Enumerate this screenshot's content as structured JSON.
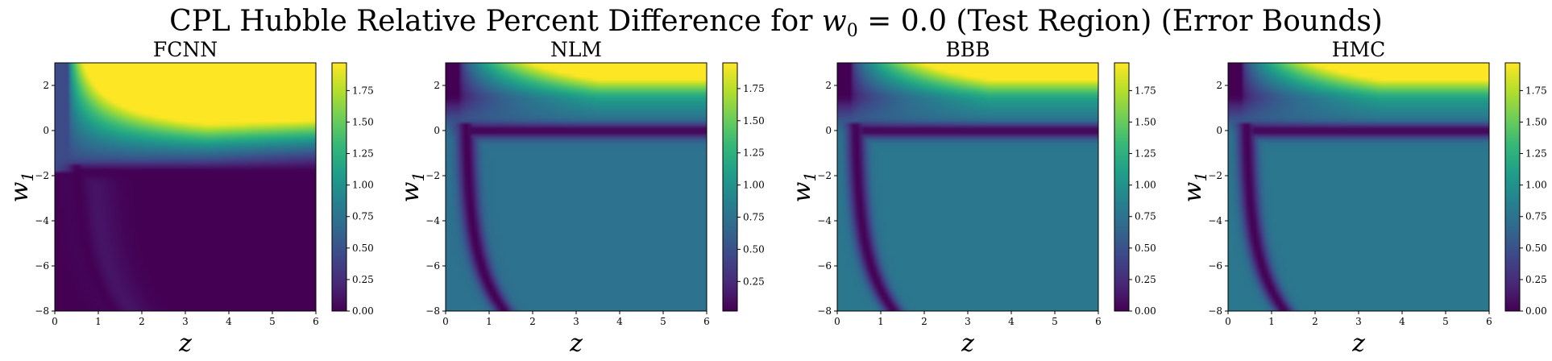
{
  "chart_data": {
    "type": "heatmap",
    "title": "CPL Hubble Relative Percent Difference for w0 = 0.0 (Test Region) (Error Bounds)",
    "title_parts": {
      "prefix": "CPL Hubble Relative Percent Difference for ",
      "var": "w",
      "var_sub": "0",
      "suffix": " = 0.0 (Test Region) (Error Bounds)"
    },
    "xlabel": "z",
    "ylabel": {
      "var": "w",
      "sub": "1"
    },
    "xlim": [
      0,
      6
    ],
    "ylim": [
      -8,
      3
    ],
    "x_ticks": [
      0,
      1,
      2,
      3,
      4,
      5,
      6
    ],
    "y_ticks": [
      -8,
      -6,
      -4,
      -2,
      0,
      2
    ],
    "colormap": "viridis",
    "colormap_stops": [
      "#440154",
      "#482878",
      "#3e4989",
      "#31688e",
      "#26828e",
      "#1f9e89",
      "#35b779",
      "#6ece58",
      "#b5de2b",
      "#fde725"
    ],
    "panels": [
      {
        "name": "FCNN",
        "clim": [
          0,
          1.97
        ],
        "cbar_ticks": [
          "0.00",
          "0.25",
          "0.50",
          "0.75",
          "1.00",
          "1.25",
          "1.50",
          "1.75"
        ],
        "cbar_tick_values": [
          0,
          0.25,
          0.5,
          0.75,
          1.0,
          1.25,
          1.5,
          1.75
        ],
        "background": 0.0,
        "valley_w1": -1.8,
        "valley_z": 0.45
      },
      {
        "name": "NLM",
        "clim": [
          0.02,
          1.95
        ],
        "cbar_ticks": [
          "0.25",
          "0.50",
          "0.75",
          "1.00",
          "1.25",
          "1.50",
          "1.75"
        ],
        "cbar_tick_values": [
          0.25,
          0.5,
          0.75,
          1.0,
          1.25,
          1.5,
          1.75
        ],
        "background": 0.4,
        "valley_w1": 0.0,
        "valley_z": 0.45
      },
      {
        "name": "BBB",
        "clim": [
          0,
          1.97
        ],
        "cbar_ticks": [
          "0.00",
          "0.25",
          "0.50",
          "0.75",
          "1.00",
          "1.25",
          "1.50",
          "1.75"
        ],
        "cbar_tick_values": [
          0,
          0.25,
          0.5,
          0.75,
          1.0,
          1.25,
          1.5,
          1.75
        ],
        "background": 0.42,
        "valley_w1": 0.0,
        "valley_z": 0.4
      },
      {
        "name": "HMC",
        "clim": [
          0,
          1.97
        ],
        "cbar_ticks": [
          "0.00",
          "0.25",
          "0.50",
          "0.75",
          "1.00",
          "1.25",
          "1.50",
          "1.75"
        ],
        "cbar_tick_values": [
          0,
          0.25,
          0.5,
          0.75,
          1.0,
          1.25,
          1.5,
          1.75
        ],
        "background": 0.42,
        "valley_w1": 0.0,
        "valley_z": 0.4
      }
    ]
  }
}
